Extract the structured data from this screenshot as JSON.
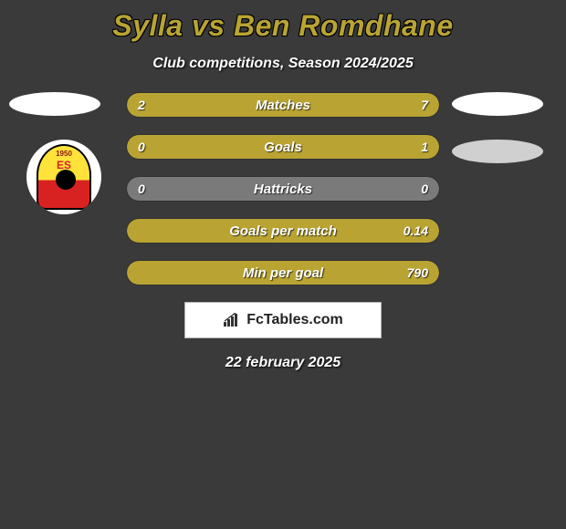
{
  "title": "Sylla vs Ben Romdhane",
  "subtitle": "Club competitions, Season 2024/2025",
  "date": "22 february 2025",
  "brand": "FcTables.com",
  "colors": {
    "accent": "#b9a433",
    "accent_light": "#c6b454",
    "neutral_fill": "#7a7a7a",
    "bar_bg": "#3a3a3a"
  },
  "crest": {
    "top_text": "1950",
    "es_text": "ES"
  },
  "stats": [
    {
      "label": "Matches",
      "left_value": "2",
      "right_value": "7",
      "left_pct": 22,
      "right_pct": 78,
      "left_color": "#b9a433",
      "right_color": "#b9a433",
      "full": false
    },
    {
      "label": "Goals",
      "left_value": "0",
      "right_value": "1",
      "left_pct": 0,
      "right_pct": 100,
      "left_color": "#b9a433",
      "right_color": "#b9a433",
      "full": true,
      "full_color": "#b9a433"
    },
    {
      "label": "Hattricks",
      "left_value": "0",
      "right_value": "0",
      "left_pct": 0,
      "right_pct": 0,
      "left_color": "#7a7a7a",
      "right_color": "#7a7a7a",
      "full": true,
      "full_color": "#7a7a7a"
    },
    {
      "label": "Goals per match",
      "left_value": "",
      "right_value": "0.14",
      "left_pct": 0,
      "right_pct": 100,
      "left_color": "#b9a433",
      "right_color": "#b9a433",
      "full": true,
      "full_color": "#b9a433"
    },
    {
      "label": "Min per goal",
      "left_value": "",
      "right_value": "790",
      "left_pct": 0,
      "right_pct": 100,
      "left_color": "#b9a433",
      "right_color": "#b9a433",
      "full": true,
      "full_color": "#b9a433"
    }
  ]
}
